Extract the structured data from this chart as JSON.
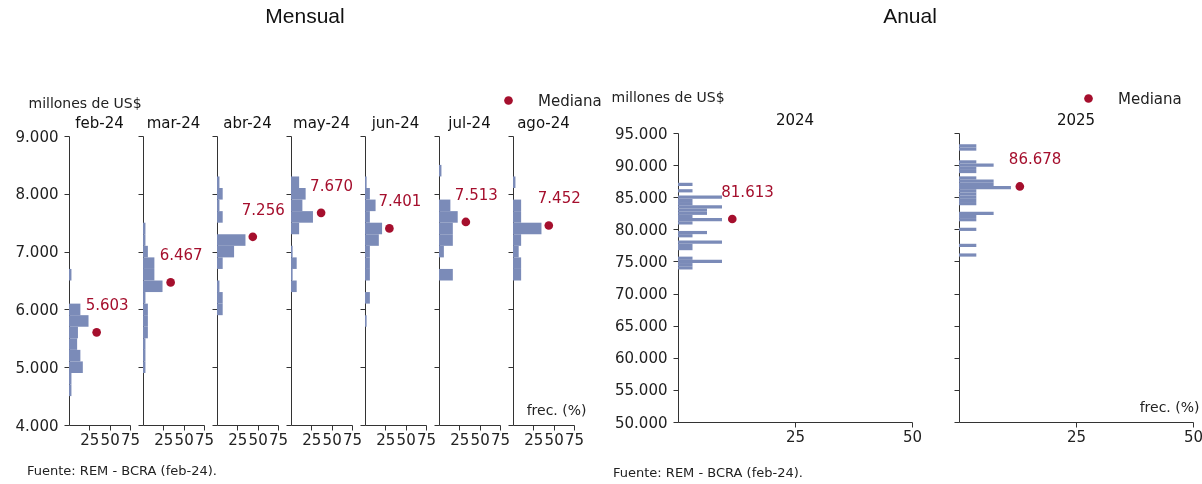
{
  "chart_data": [
    {
      "type": "histogram",
      "orientation": "horizontal",
      "title": "feb-24",
      "ylabel": "millones de US$",
      "xlim": [
        0,
        75
      ],
      "xticks": [
        25,
        50,
        75
      ],
      "ylim": [
        4000,
        9000
      ],
      "yticks": [
        {
          "value": 4000,
          "label": "4.000"
        },
        {
          "value": 5000,
          "label": "5.000"
        },
        {
          "value": 6000,
          "label": "6.000"
        },
        {
          "value": 7000,
          "label": "7.000"
        },
        {
          "value": 8000,
          "label": "8.000"
        },
        {
          "value": 9000,
          "label": "9.000"
        }
      ],
      "color": "#7b8bb8",
      "bins": [
        4500,
        4700,
        4900,
        5100,
        5300,
        5500,
        5700,
        5900,
        6100,
        6300,
        6500,
        6700
      ],
      "values": [
        3,
        3,
        17,
        14,
        10,
        11,
        24,
        14,
        0,
        0,
        3
      ],
      "series": [
        {
          "type": "scatter",
          "color": "#a50f2d",
          "marker": "circle",
          "x": [
            5603
          ],
          "values": [
            34
          ]
        }
      ],
      "annotations": [
        "Mensual",
        "Fuente: REM - BCRA (feb-24).",
        {
          "text": "5.603",
          "x": 34,
          "y": 5603
        }
      ]
    },
    {
      "type": "histogram",
      "orientation": "horizontal",
      "title": "mar-24",
      "tick_labels": "x",
      "xlim": [
        0,
        75
      ],
      "xticks": [
        25,
        50,
        75
      ],
      "ylim": [
        4000,
        9000
      ],
      "yticks": [
        4000,
        5000,
        6000,
        7000,
        8000,
        9000
      ],
      "color": "#7b8bb8",
      "bins": [
        4900,
        5100,
        5300,
        5500,
        5700,
        5900,
        6100,
        6300,
        6500,
        6700,
        6900,
        7100,
        7300,
        7500
      ],
      "values": [
        3,
        3,
        3,
        6,
        6,
        6,
        3,
        24,
        14,
        14,
        6,
        3,
        3
      ],
      "series": [
        {
          "type": "scatter",
          "color": "#a50f2d",
          "marker": "circle",
          "x": [
            6467
          ],
          "values": [
            34
          ]
        }
      ],
      "annotations": [
        {
          "text": "6.467",
          "x": 34,
          "y": 6467
        }
      ]
    },
    {
      "type": "histogram",
      "orientation": "horizontal",
      "title": "abr-24",
      "tick_labels": "x",
      "xlim": [
        0,
        75
      ],
      "xticks": [
        25,
        50,
        75
      ],
      "ylim": [
        4000,
        9000
      ],
      "yticks": [
        4000,
        5000,
        6000,
        7000,
        8000,
        9000
      ],
      "color": "#7b8bb8",
      "bins": [
        5900,
        6100,
        6300,
        6500,
        6700,
        6900,
        7100,
        7300,
        7500,
        7700,
        7900,
        8100,
        8300
      ],
      "values": [
        7,
        7,
        3,
        0,
        7,
        21,
        35,
        0,
        7,
        3,
        7,
        3
      ],
      "series": [
        {
          "type": "scatter",
          "color": "#a50f2d",
          "marker": "circle",
          "x": [
            7256
          ],
          "values": [
            44
          ]
        }
      ],
      "annotations": [
        {
          "text": "7.256",
          "x": 44,
          "y": 7256
        }
      ]
    },
    {
      "type": "histogram",
      "orientation": "horizontal",
      "title": "may-24",
      "tick_labels": "x",
      "xlim": [
        0,
        75
      ],
      "xticks": [
        25,
        50,
        75
      ],
      "ylim": [
        4000,
        9000
      ],
      "yticks": [
        4000,
        5000,
        6000,
        7000,
        8000,
        9000
      ],
      "color": "#7b8bb8",
      "bins": [
        6300,
        6500,
        6700,
        6900,
        7100,
        7300,
        7500,
        7700,
        7900,
        8100,
        8300
      ],
      "values": [
        7,
        2,
        7,
        2,
        0,
        10,
        27,
        14,
        18,
        10
      ],
      "series": [
        {
          "type": "scatter",
          "color": "#a50f2d",
          "marker": "circle",
          "x": [
            7670
          ],
          "values": [
            37
          ]
        }
      ],
      "annotations": [
        {
          "text": "7.670",
          "x": 37,
          "y": 7670
        }
      ]
    },
    {
      "type": "histogram",
      "orientation": "horizontal",
      "title": "jun-24",
      "tick_labels": "x",
      "xlim": [
        0,
        75
      ],
      "xticks": [
        25,
        50,
        75
      ],
      "ylim": [
        4000,
        9000
      ],
      "yticks": [
        4000,
        5000,
        6000,
        7000,
        8000,
        9000
      ],
      "color": "#7b8bb8",
      "bins": [
        5700,
        5900,
        6100,
        6300,
        6500,
        6700,
        6900,
        7100,
        7300,
        7500,
        7700,
        7900,
        8100,
        8300
      ],
      "values": [
        2,
        0,
        6,
        0,
        6,
        6,
        6,
        17,
        21,
        6,
        13,
        6,
        2
      ],
      "series": [
        {
          "type": "scatter",
          "color": "#a50f2d",
          "marker": "circle",
          "x": [
            7401
          ],
          "values": [
            30
          ]
        }
      ],
      "annotations": [
        {
          "text": "7.401",
          "x": 30,
          "y": 7401
        }
      ]
    },
    {
      "type": "histogram",
      "orientation": "horizontal",
      "title": "jul-24",
      "tick_labels": "x",
      "xlim": [
        0,
        75
      ],
      "xticks": [
        25,
        50,
        75
      ],
      "ylim": [
        4000,
        9000
      ],
      "yticks": [
        4000,
        5000,
        6000,
        7000,
        8000,
        9000
      ],
      "color": "#7b8bb8",
      "bins": [
        6500,
        6700,
        6900,
        7100,
        7300,
        7500,
        7700,
        7900,
        8100,
        8300,
        8500
      ],
      "values": [
        17,
        0,
        6,
        17,
        17,
        23,
        14,
        0,
        0,
        3
      ],
      "series": [
        {
          "type": "scatter",
          "color": "#a50f2d",
          "marker": "circle",
          "x": [
            7513
          ],
          "values": [
            33
          ]
        }
      ],
      "annotations": [
        {
          "text": "7.513",
          "x": 33,
          "y": 7513
        }
      ]
    },
    {
      "type": "histogram",
      "orientation": "horizontal",
      "title": "ago-24",
      "xlabel": "frec. (%)",
      "tick_labels": "x",
      "legend": "top right",
      "xlim": [
        0,
        75
      ],
      "xticks": [
        25,
        50,
        75
      ],
      "ylim": [
        4000,
        9000
      ],
      "yticks": [
        4000,
        5000,
        6000,
        7000,
        8000,
        9000
      ],
      "color": "#7b8bb8",
      "bins": [
        6500,
        6700,
        6900,
        7100,
        7300,
        7500,
        7700,
        7900,
        8100,
        8300
      ],
      "values": [
        10,
        10,
        7,
        10,
        35,
        10,
        10,
        0,
        3
      ],
      "series": [
        {
          "type": "scatter",
          "name": "Mediana",
          "color": "#a50f2d",
          "marker": "circle",
          "x": [
            7452
          ],
          "values": [
            44
          ]
        }
      ],
      "annotations": [
        {
          "text": "7.452",
          "x": 44,
          "y": 7452
        }
      ]
    },
    {
      "type": "histogram",
      "orientation": "horizontal",
      "title": "2024",
      "ylabel": "millones de US$",
      "xlim": [
        0,
        50
      ],
      "xticks": [
        25,
        50
      ],
      "ylim": [
        50000,
        95000
      ],
      "yticks": [
        {
          "value": 50000,
          "label": "50.000"
        },
        {
          "value": 55000,
          "label": "55.000"
        },
        {
          "value": 60000,
          "label": "60.000"
        },
        {
          "value": 65000,
          "label": "65.000"
        },
        {
          "value": 70000,
          "label": "70.000"
        },
        {
          "value": 75000,
          "label": "75.000"
        },
        {
          "value": 80000,
          "label": "80.000"
        },
        {
          "value": 85000,
          "label": "85.000"
        },
        {
          "value": 90000,
          "label": "90.000"
        },
        {
          "value": 95000,
          "label": "95.000"
        }
      ],
      "color": "#7b8bb8",
      "bins": [
        73750,
        74250,
        74750,
        75250,
        75750,
        76250,
        76750,
        77250,
        77750,
        78250,
        78750,
        79250,
        79750,
        80250,
        80750,
        81250,
        81750,
        82250,
        82750,
        83250,
        83750,
        84250,
        84750,
        85250,
        85750,
        86250,
        86750,
        87250
      ],
      "values": [
        3.1,
        3.1,
        9.4,
        3.1,
        0,
        0,
        3.1,
        3.1,
        9.4,
        0,
        3.1,
        6.2,
        0,
        0,
        3.1,
        9.4,
        3.1,
        6.2,
        6.2,
        9.4,
        3.1,
        3.1,
        9.4,
        0,
        3.1,
        0,
        3.1
      ],
      "series": [
        {
          "type": "scatter",
          "color": "#a50f2d",
          "marker": "circle",
          "x": [
            81613
          ],
          "values": [
            11.6
          ]
        }
      ],
      "annotations": [
        "Anual",
        "Fuente: REM - BCRA (feb-24).",
        {
          "text": "81.613",
          "x": 11.6,
          "y": 81613
        }
      ]
    },
    {
      "type": "histogram",
      "orientation": "horizontal",
      "title": "2025",
      "xlabel": "frec. (%)",
      "tick_labels": "x",
      "legend": "top right",
      "xlim": [
        0,
        50
      ],
      "xticks": [
        25,
        50
      ],
      "ylim": [
        50000,
        95000
      ],
      "yticks": [
        50000,
        55000,
        60000,
        65000,
        70000,
        75000,
        80000,
        85000,
        90000,
        95000
      ],
      "color": "#7b8bb8",
      "bins": [
        75750,
        76250,
        76750,
        77250,
        77750,
        78250,
        78750,
        79250,
        79750,
        80250,
        80750,
        81250,
        81750,
        82250,
        82750,
        83250,
        83750,
        84250,
        84750,
        85250,
        85750,
        86250,
        86750,
        87250,
        87750,
        88250,
        88750,
        89250,
        89750,
        90250,
        90750,
        91250,
        91750,
        92250,
        92750,
        93250
      ],
      "values": [
        3.7,
        0,
        0,
        3.7,
        0,
        0,
        0,
        0,
        3.7,
        0,
        0,
        3.7,
        3.7,
        7.4,
        0,
        0,
        3.7,
        3.7,
        3.7,
        3.7,
        3.7,
        11.1,
        7.4,
        7.4,
        3.7,
        0,
        3.7,
        3.7,
        7.4,
        3.7,
        0,
        0,
        0,
        3.7,
        3.7
      ],
      "series": [
        {
          "type": "scatter",
          "name": "Mediana",
          "color": "#a50f2d",
          "marker": "circle",
          "x": [
            86678
          ],
          "values": [
            13
          ]
        }
      ],
      "annotations": [
        {
          "text": "86.678",
          "x": 13,
          "y": 86678
        }
      ]
    }
  ]
}
